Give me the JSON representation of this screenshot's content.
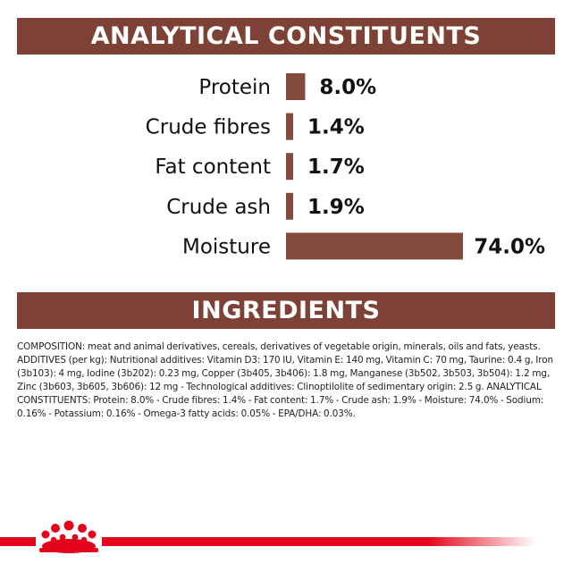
{
  "colors": {
    "banner_bg": "#7d4235",
    "bar": "#844a3b",
    "brand_red": "#e3051b",
    "text": "#111111"
  },
  "analytical": {
    "heading": "ANALYTICAL CONSTITUENTS"
  },
  "chart_data": {
    "type": "bar",
    "orientation": "horizontal",
    "categories": [
      "Protein",
      "Crude fibres",
      "Fat content",
      "Crude ash",
      "Moisture"
    ],
    "values": [
      8.0,
      1.4,
      1.7,
      1.9,
      74.0
    ],
    "value_labels": [
      "8.0%",
      "1.4%",
      "1.7%",
      "1.9%",
      "74.0%"
    ],
    "unit": "%",
    "title": "",
    "xlabel": "",
    "ylabel": "",
    "grid": false,
    "legend": "none"
  },
  "ingredients": {
    "heading": "INGREDIENTS",
    "composition": "COMPOSITION: meat and animal derivatives, cereals, derivatives of vegetable origin, minerals, oils and fats, yeasts. ADDITIVES (per kg): Nutritional additives: Vitamin D3: 170 IU, Vitamin E: 140 mg, Vitamin C: 70 mg, Taurine: 0.4 g, Iron (3b103): 4 mg, Iodine (3b202): 0.23 mg, Copper (3b405, 3b406): 1.8 mg, Manganese (3b502, 3b503, 3b504): 1.2 mg, Zinc (3b603, 3b605, 3b606): 12 mg - Technological additives: Clinoptilolite of sedimentary origin: 2.5 g. ANALYTICAL CONSTITUENTS: Protein: 8.0% - Crude fibres: 1.4% - Fat content: 1.7% - Crude ash: 1.9% - Moisture: 74.0% - Sodium: 0.16% - Potassium: 0.16% - Omega-3 fatty acids: 0.05% - EPA/DHA: 0.03%."
  },
  "footer": {
    "logo_icon": "royal-canin-crown-icon"
  }
}
